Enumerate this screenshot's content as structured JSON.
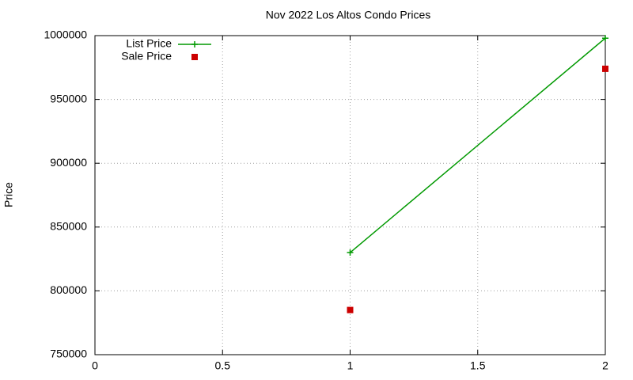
{
  "chart_data": {
    "type": "line",
    "title": "Nov 2022 Los Altos Condo Prices",
    "y_label": "Price",
    "x": [
      1,
      2
    ],
    "series": [
      {
        "name": "List Price",
        "color": "#009900",
        "style": "linespoints",
        "values": [
          830000,
          998000
        ]
      },
      {
        "name": "Sale Price",
        "color": "#cc0000",
        "style": "points",
        "values": [
          785000,
          974000
        ]
      }
    ],
    "xlim": [
      0,
      2
    ],
    "xticks": [
      0,
      0.5,
      1,
      1.5,
      2
    ],
    "ylim": [
      750000,
      1000000
    ],
    "yticks": [
      750000,
      800000,
      850000,
      900000,
      950000,
      1000000
    ],
    "grid": true,
    "legend": "top-left"
  }
}
